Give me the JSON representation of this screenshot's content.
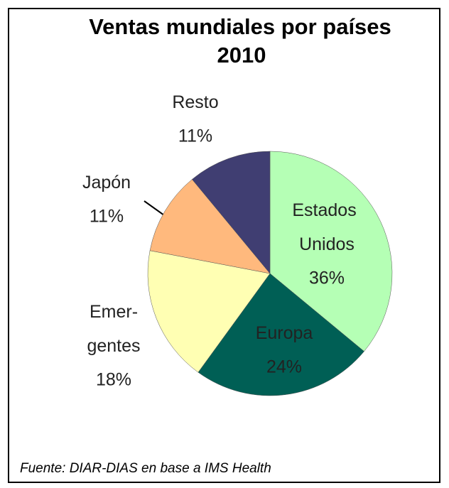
{
  "chart_data": {
    "type": "pie",
    "title": "Ventas mundiales por países",
    "subtitle": "2010",
    "categories": [
      "Estados Unidos",
      "Europa",
      "Emer-gentes",
      "Japón",
      "Resto"
    ],
    "values": [
      36,
      24,
      18,
      11,
      11
    ],
    "value_labels": [
      "36%",
      "24%",
      "18%",
      "11%",
      "11%"
    ],
    "colors": [
      "#b5ffb5",
      "#005f55",
      "#ffffb3",
      "#ffb97d",
      "#403e72"
    ],
    "source": "Fuente: DIAR-DIAS en base a IMS Health"
  }
}
